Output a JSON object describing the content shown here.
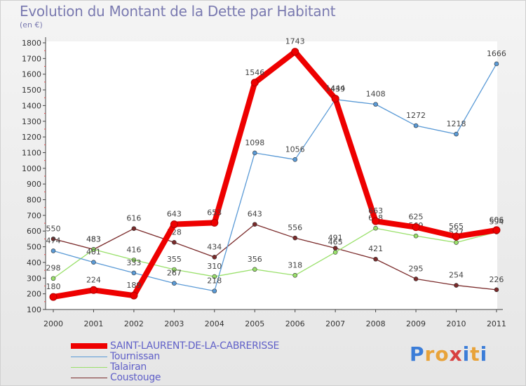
{
  "header": {
    "title": "Evolution du Montant de la Dette par Habitant",
    "unit": "(en €)"
  },
  "brand": {
    "letters": [
      "P",
      "r",
      "o",
      "x",
      "i",
      "t",
      "i"
    ],
    "colors": [
      "#3b7dd8",
      "#e8a33a",
      "#e8a33a",
      "#d84040",
      "#3b7dd8",
      "#e8a33a",
      "#3b7dd8"
    ]
  },
  "chart_data": {
    "type": "line",
    "title": "Evolution du Montant de la Dette par Habitant",
    "subtitle": "(en €)",
    "xlabel": "",
    "ylabel": "",
    "categories": [
      "2000",
      "2001",
      "2002",
      "2003",
      "2004",
      "2005",
      "2006",
      "2007",
      "2008",
      "2009",
      "2010",
      "2011"
    ],
    "ylim": [
      100,
      1800
    ],
    "yticks": [
      100,
      200,
      300,
      400,
      500,
      600,
      700,
      800,
      900,
      1000,
      1100,
      1200,
      1300,
      1400,
      1500,
      1600,
      1700,
      1800
    ],
    "grid": false,
    "legend": "bottom-left",
    "series": [
      {
        "name": "Coustouge",
        "color": "#7a2a2a",
        "values": [
          550,
          483,
          616,
          528,
          434,
          643,
          556,
          491,
          421,
          295,
          254,
          226
        ]
      },
      {
        "name": "Talairan",
        "color": "#99e06a",
        "values": [
          298,
          483,
          416,
          355,
          310,
          356,
          318,
          465,
          618,
          569,
          527,
          594
        ]
      },
      {
        "name": "Tournissan",
        "color": "#5a9ad6",
        "values": [
          474,
          401,
          333,
          267,
          218,
          1098,
          1056,
          1439,
          1408,
          1272,
          1218,
          1666
        ]
      },
      {
        "name": "SAINT-LAURENT-DE-LA-CABRERISSE",
        "color": "#ee0000",
        "values": [
          180,
          224,
          189,
          643,
          653,
          1546,
          1743,
          1444,
          663,
          625,
          565,
          606
        ]
      }
    ]
  },
  "legend_items": [
    {
      "name": "SAINT-LAURENT-DE-LA-CABRERISSE",
      "color": "#ee0000",
      "thickness": 8
    },
    {
      "name": "Tournissan",
      "color": "#5a9ad6",
      "thickness": 1
    },
    {
      "name": "Talairan",
      "color": "#99e06a",
      "thickness": 1
    },
    {
      "name": "Coustouge",
      "color": "#7a2a2a",
      "thickness": 1
    }
  ]
}
